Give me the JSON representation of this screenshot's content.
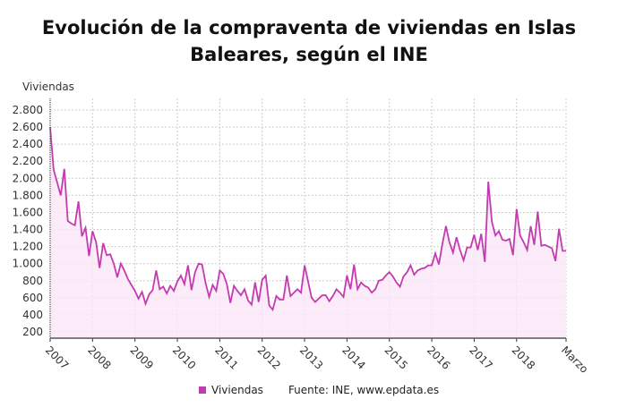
{
  "chart_data": {
    "type": "area",
    "title": "Evolución de la compraventa de viviendas en Islas Baleares, según el INE",
    "ylabel": "Viviendas",
    "xlabel": "",
    "start": "2007-01",
    "frequency": "monthly",
    "end": "2019-03",
    "xtick_labels": [
      "2007",
      "2008",
      "2009",
      "2010",
      "2011",
      "2012",
      "2013",
      "2014",
      "2015",
      "2016",
      "2017",
      "2018",
      "Marzo"
    ],
    "ytick_labels": [
      "200",
      "400",
      "600",
      "800",
      "1.000",
      "1.200",
      "1.400",
      "1.600",
      "1.800",
      "2.000",
      "2.200",
      "2.400",
      "2.600",
      "2.800"
    ],
    "yticks": [
      200,
      400,
      600,
      800,
      1000,
      1200,
      1400,
      1600,
      1800,
      2000,
      2200,
      2400,
      2600,
      2800
    ],
    "ylim": [
      150,
      2900
    ],
    "grid": true,
    "legend_position": "bottom",
    "series": [
      {
        "name": "Viviendas",
        "color": "#c23cb0",
        "fill": "#fbe6f6",
        "values": [
          2600,
          2100,
          1950,
          1800,
          2110,
          1500,
          1470,
          1450,
          1730,
          1320,
          1420,
          1090,
          1380,
          1250,
          950,
          1240,
          1100,
          1110,
          1000,
          840,
          1000,
          920,
          820,
          750,
          680,
          590,
          670,
          530,
          640,
          690,
          920,
          700,
          730,
          650,
          740,
          680,
          790,
          860,
          760,
          980,
          690,
          900,
          1000,
          990,
          770,
          610,
          750,
          680,
          920,
          880,
          760,
          540,
          740,
          680,
          630,
          700,
          570,
          520,
          780,
          550,
          810,
          860,
          510,
          460,
          620,
          580,
          580,
          860,
          620,
          660,
          700,
          660,
          980,
          790,
          600,
          550,
          590,
          630,
          630,
          560,
          620,
          700,
          660,
          610,
          860,
          700,
          990,
          700,
          780,
          740,
          720,
          660,
          700,
          800,
          810,
          860,
          900,
          850,
          780,
          730,
          850,
          900,
          980,
          870,
          920,
          940,
          950,
          980,
          980,
          1120,
          990,
          1230,
          1440,
          1250,
          1130,
          1310,
          1160,
          1040,
          1190,
          1190,
          1340,
          1160,
          1350,
          1020,
          1960,
          1490,
          1330,
          1380,
          1280,
          1270,
          1290,
          1100,
          1640,
          1330,
          1250,
          1160,
          1440,
          1220,
          1610,
          1210,
          1220,
          1200,
          1180,
          1030,
          1410,
          1150,
          1150
        ]
      }
    ],
    "source": "Fuente: INE, www.epdata.es"
  }
}
